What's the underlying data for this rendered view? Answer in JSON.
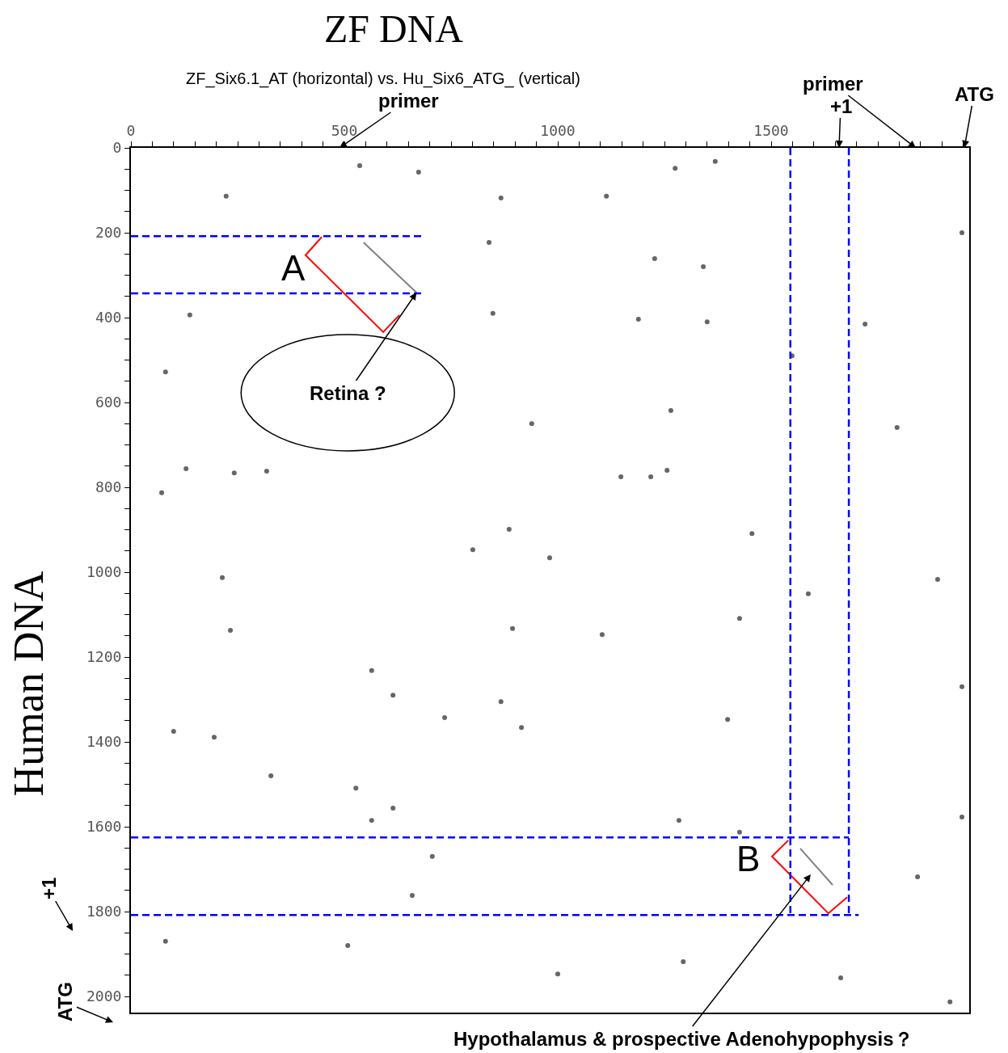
{
  "chart_data": {
    "type": "scatter",
    "title": "ZF DNA",
    "subtitle": "ZF_Six6.1_AT (horizontal) vs. Hu_Six6_ATG_ (vertical)",
    "ylabel": "Human DNA",
    "xlim": [
      0,
      1964
    ],
    "ylim": [
      2038,
      0
    ],
    "xticks": [
      0,
      {
        "value": 50,
        "label": null
      },
      {
        "value": 100,
        "label": null
      },
      {
        "value": 150,
        "label": null
      },
      {
        "value": 200,
        "label": null
      },
      {
        "value": 250,
        "label": null
      },
      {
        "value": 300,
        "label": null
      },
      {
        "value": 350,
        "label": null
      },
      {
        "value": 400,
        "label": null
      },
      {
        "value": 450,
        "label": null
      },
      500,
      {
        "value": 550,
        "label": null
      },
      {
        "value": 600,
        "label": null
      },
      {
        "value": 650,
        "label": null
      },
      {
        "value": 700,
        "label": null
      },
      {
        "value": 750,
        "label": null
      },
      {
        "value": 800,
        "label": null
      },
      {
        "value": 850,
        "label": null
      },
      {
        "value": 900,
        "label": null
      },
      {
        "value": 950,
        "label": null
      },
      1000,
      {
        "value": 1050,
        "label": null
      },
      {
        "value": 1100,
        "label": null
      },
      {
        "value": 1150,
        "label": null
      },
      {
        "value": 1200,
        "label": null
      },
      {
        "value": 1250,
        "label": null
      },
      {
        "value": 1300,
        "label": null
      },
      {
        "value": 1350,
        "label": null
      },
      {
        "value": 1400,
        "label": null
      },
      {
        "value": 1450,
        "label": null
      },
      1500,
      {
        "value": 1550,
        "label": null
      },
      {
        "value": 1600,
        "label": null
      },
      {
        "value": 1650,
        "label": null
      },
      {
        "value": 1700,
        "label": null
      },
      {
        "value": 1750,
        "label": null
      },
      {
        "value": 1800,
        "label": null
      },
      {
        "value": 1850,
        "label": null
      },
      {
        "value": 1900,
        "label": null
      },
      {
        "value": 1950,
        "label": null
      }
    ],
    "yticks": [
      0,
      {
        "value": 50,
        "label": null
      },
      {
        "value": 100,
        "label": null
      },
      {
        "value": 150,
        "label": null
      },
      200,
      {
        "value": 250,
        "label": null
      },
      {
        "value": 300,
        "label": null
      },
      {
        "value": 350,
        "label": null
      },
      400,
      {
        "value": 450,
        "label": null
      },
      {
        "value": 500,
        "label": null
      },
      {
        "value": 550,
        "label": null
      },
      600,
      {
        "value": 650,
        "label": null
      },
      {
        "value": 700,
        "label": null
      },
      {
        "value": 750,
        "label": null
      },
      800,
      {
        "value": 850,
        "label": null
      },
      {
        "value": 900,
        "label": null
      },
      {
        "value": 950,
        "label": null
      },
      1000,
      {
        "value": 1050,
        "label": null
      },
      {
        "value": 1100,
        "label": null
      },
      {
        "value": 1150,
        "label": null
      },
      1200,
      {
        "value": 1250,
        "label": null
      },
      {
        "value": 1300,
        "label": null
      },
      {
        "value": 1350,
        "label": null
      },
      1400,
      {
        "value": 1450,
        "label": null
      },
      {
        "value": 1500,
        "label": null
      },
      {
        "value": 1550,
        "label": null
      },
      1600,
      {
        "value": 1650,
        "label": null
      },
      {
        "value": 1700,
        "label": null
      },
      {
        "value": 1750,
        "label": null
      },
      1800,
      {
        "value": 1850,
        "label": null
      },
      {
        "value": 1900,
        "label": null
      },
      {
        "value": 1950,
        "label": null
      },
      2000
    ],
    "marker": "circle",
    "series": [
      {
        "color": "#666666",
        "x": [
          536,
          674,
          1275,
          1369,
          223,
          867,
          1114,
          839,
          1227,
          1341,
          1947,
          848,
          138,
          1189,
          1350,
          1720,
          81,
          1549,
          1795,
          939,
          1265,
          129,
          242,
          318,
          1148,
          1218,
          1256,
          72,
          886,
          1455,
          981,
          801,
          1890,
          214,
          1587,
          1426,
          233,
          894,
          1104,
          564,
          614,
          867,
          1947,
          735,
          915,
          1398,
          195,
          100,
          328,
          527,
          614,
          564,
          1284,
          1947,
          1843,
          659,
          508,
          1000,
          1294,
          1663,
          81,
          1919,
          1426,
          706
        ],
        "values": [
          42,
          57,
          48,
          32,
          114,
          118,
          114,
          223,
          261,
          280,
          200,
          390,
          394,
          404,
          410,
          415,
          528,
          490,
          659,
          650,
          619,
          756,
          766,
          762,
          775,
          775,
          760,
          813,
          899,
          909,
          966,
          947,
          1017,
          1013,
          1051,
          1109,
          1137,
          1133,
          1147,
          1232,
          1290,
          1305,
          1270,
          1343,
          1366,
          1347,
          1389,
          1375,
          1480,
          1509,
          1556,
          1585,
          1585,
          1577,
          1718,
          1762,
          1880,
          1947,
          1918,
          1956,
          1870,
          2013,
          1613,
          1670
        ]
      },
      {
        "type": "line",
        "marker": "none",
        "color": "#808080",
        "line_style": "solid",
        "x": [
          545,
          669
        ],
        "values": [
          223,
          341
        ]
      },
      {
        "type": "line",
        "marker": "none",
        "color": "#808080",
        "line_style": "solid",
        "x": [
          1568,
          1644
        ],
        "values": [
          1651,
          1737
        ]
      },
      {
        "type": "line",
        "marker": "none",
        "color": "#ff0000",
        "line_style": "solid",
        "x": [
          447,
          409,
          591,
          629
        ],
        "values": [
          210,
          253,
          434,
          394
        ]
      },
      {
        "type": "line",
        "marker": "none",
        "color": "#ff0000",
        "line_style": "solid",
        "x": [
          1540,
          1502,
          1634,
          1678
        ],
        "values": [
          1632,
          1670,
          1804,
          1766
        ]
      },
      {
        "type": "line",
        "marker": "none",
        "color": "#0000ff",
        "line_style": "dashed",
        "x": [
          0,
          682
        ],
        "values": [
          208,
          208
        ]
      },
      {
        "type": "line",
        "marker": "none",
        "color": "#0000ff",
        "line_style": "dashed",
        "x": [
          0,
          682
        ],
        "values": [
          343,
          343
        ]
      },
      {
        "type": "line",
        "marker": "none",
        "color": "#0000ff",
        "line_style": "dashed",
        "x": [
          0,
          1682
        ],
        "values": [
          1625,
          1625
        ]
      },
      {
        "type": "line",
        "marker": "none",
        "color": "#0000ff",
        "line_style": "dashed",
        "x": [
          0,
          1705
        ],
        "values": [
          1808,
          1808
        ]
      },
      {
        "type": "line",
        "marker": "none",
        "color": "#0000ff",
        "line_style": "dashed",
        "x": [
          1545,
          1545
        ],
        "values": [
          0,
          1808
        ]
      },
      {
        "type": "line",
        "marker": "none",
        "color": "#0000ff",
        "line_style": "dashed",
        "x": [
          1682,
          1682
        ],
        "values": [
          0,
          1808
        ]
      }
    ],
    "annotations": [
      "A",
      "B",
      {
        "text": "Retina ?",
        "x": 669,
        "y": 341
      },
      "Hypothalamus & prospective Adenohypophysis？",
      "primer",
      "primer",
      "+1",
      "ATG",
      "+1",
      "ATG"
    ]
  }
}
